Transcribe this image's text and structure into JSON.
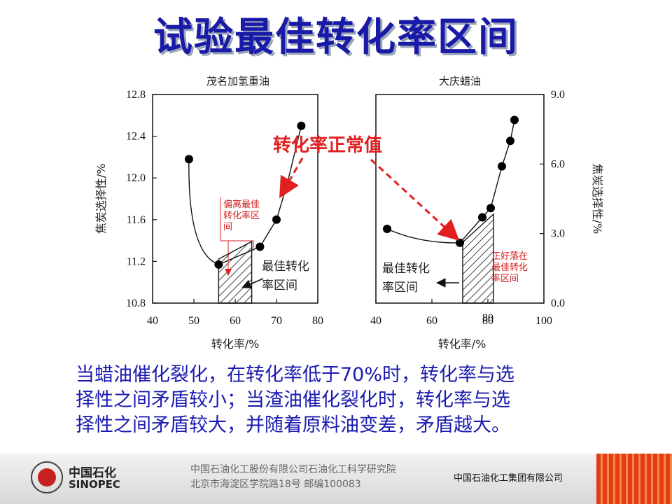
{
  "slide": {
    "title": "试验最佳转化率区间",
    "body_lines": [
      "当蜡油催化裂化，在转化率低于70%时，转化率与选",
      "择性之间矛盾较小；当渣油催化裂化时，转化率与选",
      "择性之间矛盾较大，并随着原料油变差，矛盾越大。"
    ]
  },
  "chart_data": [
    {
      "type": "scatter",
      "title": "茂名加氢重油",
      "xlabel": "转化率/%",
      "ylabel": "焦炭选择性/%",
      "xlim": [
        40,
        80
      ],
      "ylim": [
        10.8,
        12.8
      ],
      "x_ticks": [
        "40",
        "50",
        "60",
        "70",
        "80"
      ],
      "y_ticks": [
        "10.8",
        "11.2",
        "11.6",
        "12.0",
        "12.4",
        "12.8"
      ],
      "series": [
        {
          "x": [
            48.8,
            56.0,
            66.0,
            70.0,
            72.5,
            76.0
          ],
          "y": [
            12.18,
            11.17,
            11.34,
            11.6,
            11.93,
            12.5
          ]
        }
      ],
      "optimal_range": [
        56,
        64
      ],
      "optimal_label": [
        "最佳转化",
        "率区间"
      ],
      "annotation": [
        "偏离最佳",
        "转化率区",
        "间"
      ]
    },
    {
      "type": "scatter",
      "title": "大庆蜡油",
      "xlabel": "转化率/%",
      "ylabel": "焦炭选择性/%",
      "xlim": [
        40,
        100
      ],
      "ylim": [
        0.0,
        9.0
      ],
      "x_ticks": [
        "40",
        "60",
        "80",
        "100"
      ],
      "x_extra_tick": "80",
      "y_ticks": [
        "0.0",
        "3.0",
        "6.0",
        "9.0"
      ],
      "series": [
        {
          "x": [
            44,
            70,
            78,
            81,
            85,
            88,
            89.5
          ],
          "y": [
            3.2,
            2.6,
            3.7,
            4.1,
            5.9,
            7.0,
            7.9
          ]
        }
      ],
      "optimal_range": [
        71,
        82
      ],
      "optimal_label": [
        "最佳转化",
        "率区间"
      ],
      "annotation": [
        "正好落在",
        "最佳转化",
        "率区间"
      ]
    }
  ],
  "callout": "转化率正常值",
  "footer": {
    "logo_cn": "中国石化",
    "logo_en": "SINOPEC",
    "line1": "中国石油化工股份有限公司石油化工科学研究院",
    "line2": "北京市海淀区学院路18号   邮编100083",
    "right": "中国石油化工集团有限公司"
  },
  "colors": {
    "title": "#1a1aa8",
    "body": "#1a1ab0",
    "accent_red": "#e02020"
  }
}
